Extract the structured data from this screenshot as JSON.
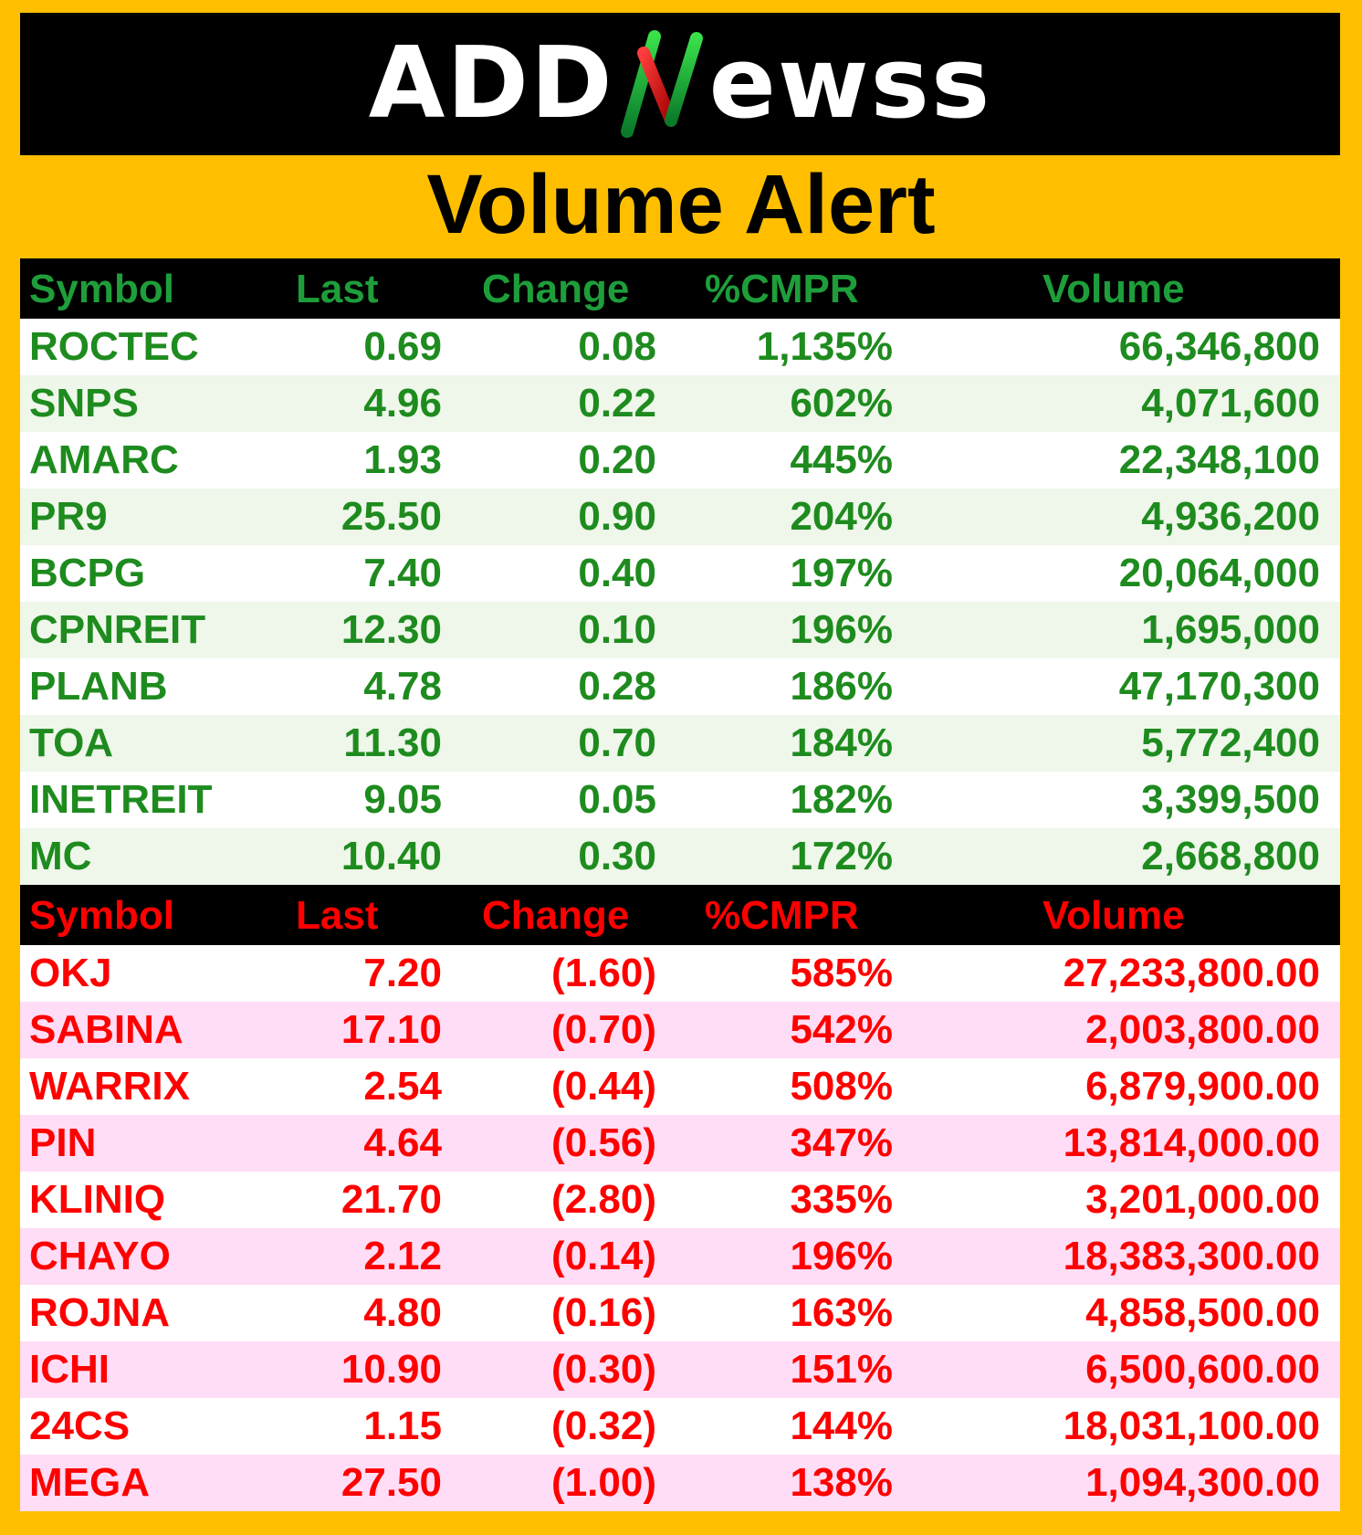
{
  "brand": {
    "logo_left": "ADD",
    "logo_right": "ewss"
  },
  "title": "Volume Alert",
  "gainers": {
    "headers": [
      "Symbol",
      "Last",
      "Change",
      "%CMPR",
      "Volume"
    ],
    "rows": [
      [
        "ROCTEC",
        "0.69",
        "0.08",
        "1,135%",
        "66,346,800"
      ],
      [
        "SNPS",
        "4.96",
        "0.22",
        "602%",
        "4,071,600"
      ],
      [
        "AMARC",
        "1.93",
        "0.20",
        "445%",
        "22,348,100"
      ],
      [
        "PR9",
        "25.50",
        "0.90",
        "204%",
        "4,936,200"
      ],
      [
        "BCPG",
        "7.40",
        "0.40",
        "197%",
        "20,064,000"
      ],
      [
        "CPNREIT",
        "12.30",
        "0.10",
        "196%",
        "1,695,000"
      ],
      [
        "PLANB",
        "4.78",
        "0.28",
        "186%",
        "47,170,300"
      ],
      [
        "TOA",
        "11.30",
        "0.70",
        "184%",
        "5,772,400"
      ],
      [
        "INETREIT",
        "9.05",
        "0.05",
        "182%",
        "3,399,500"
      ],
      [
        "MC",
        "10.40",
        "0.30",
        "172%",
        "2,668,800"
      ]
    ]
  },
  "losers": {
    "headers": [
      "Symbol",
      "Last",
      "Change",
      "%CMPR",
      "Volume"
    ],
    "rows": [
      [
        "OKJ",
        "7.20",
        "(1.60)",
        "585%",
        "27,233,800.00"
      ],
      [
        "SABINA",
        "17.10",
        "(0.70)",
        "542%",
        "2,003,800.00"
      ],
      [
        "WARRIX",
        "2.54",
        "(0.44)",
        "508%",
        "6,879,900.00"
      ],
      [
        "PIN",
        "4.64",
        "(0.56)",
        "347%",
        "13,814,000.00"
      ],
      [
        "KLINIQ",
        "21.70",
        "(2.80)",
        "335%",
        "3,201,000.00"
      ],
      [
        "CHAYO",
        "2.12",
        "(0.14)",
        "196%",
        "18,383,300.00"
      ],
      [
        "ROJNA",
        "4.80",
        "(0.16)",
        "163%",
        "4,858,500.00"
      ],
      [
        "ICHI",
        "10.90",
        "(0.30)",
        "151%",
        "6,500,600.00"
      ],
      [
        "24CS",
        "1.15",
        "(0.32)",
        "144%",
        "18,031,100.00"
      ],
      [
        "MEGA",
        "27.50",
        "(1.00)",
        "138%",
        "1,094,300.00"
      ]
    ]
  },
  "colors": {
    "background": "#FFBF00",
    "gain_text": "#1E8B1E",
    "loss_text": "#FF0000",
    "gain_row_alt": "#EEF7EA",
    "loss_row_alt": "#FFDDF6"
  }
}
